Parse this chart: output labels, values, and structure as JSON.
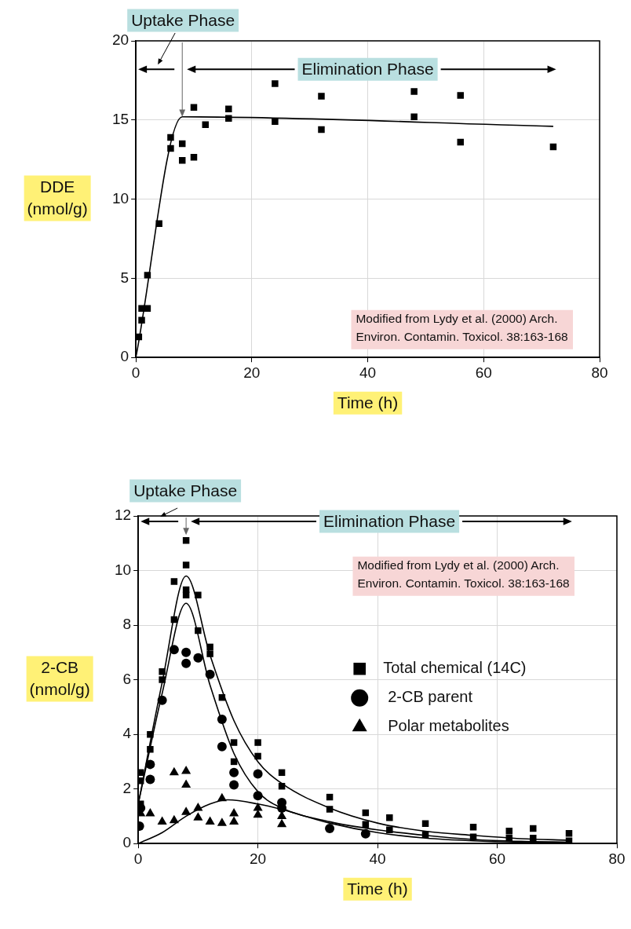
{
  "chart_data": [
    {
      "type": "scatter",
      "xlabel": "Time (h)",
      "ylabel": "DDE (nmol/g)",
      "xlim": [
        0,
        80
      ],
      "xticks": [
        0,
        20,
        40,
        60,
        80
      ],
      "ylim": [
        0,
        20
      ],
      "yticks": [
        0,
        5,
        10,
        15,
        20
      ],
      "grid": true,
      "marker": "square",
      "annotations": [
        {
          "text": "Uptake Phase",
          "x": 8,
          "y": 15.2
        },
        "Elimination Phase",
        "Modified from Lydy et al. (2000) Arch. Environ. Contamin. Toxicol. 38:163-168"
      ],
      "series": [
        {
          "color": "#000000",
          "x": [
            0.5,
            1,
            1,
            2,
            2,
            4,
            6,
            6,
            8,
            8,
            10,
            10,
            12,
            16,
            16,
            24,
            24,
            32,
            32,
            48,
            48,
            56,
            56,
            72
          ],
          "values": [
            1.3,
            2.35,
            3.1,
            3.1,
            5.2,
            8.45,
            13.9,
            13.2,
            13.5,
            12.45,
            15.8,
            12.65,
            14.7,
            15.7,
            15.1,
            17.3,
            14.9,
            16.5,
            14.4,
            16.8,
            15.2,
            16.55,
            13.6,
            13.3
          ]
        },
        {
          "type": "line",
          "color": "#000000",
          "marker": "none",
          "x": [
            0,
            8,
            72
          ],
          "values": [
            0,
            15.2,
            14.6
          ]
        }
      ]
    },
    {
      "type": "scatter",
      "xlabel": "Time (h)",
      "ylabel": "2-CB (nmol/g)",
      "xlim": [
        0,
        80
      ],
      "xticks": [
        0,
        20,
        40,
        60,
        80
      ],
      "ylim": [
        0,
        12
      ],
      "yticks": [
        0,
        2,
        4,
        6,
        8,
        10,
        12
      ],
      "grid": true,
      "legend": "right",
      "annotations": [
        {
          "text": "Uptake Phase",
          "x": 8,
          "y": 11.3
        },
        "Elimination Phase",
        "Modified from Lydy et al. (2000) Arch. Environ. Contamin. Toxicol. 38:163-168"
      ],
      "series": [
        {
          "name": "Total chemical (14C)",
          "color": "#000000",
          "marker": "square",
          "x": [
            0.4,
            0.4,
            0.4,
            2,
            2,
            4,
            4,
            6,
            6,
            8,
            8,
            8,
            8,
            10,
            10,
            12,
            12,
            14,
            16,
            16,
            20,
            20,
            24,
            24,
            32,
            32,
            38,
            38,
            42,
            42,
            48,
            48,
            56,
            56,
            62,
            62,
            66,
            66,
            72,
            72
          ],
          "values": [
            1.45,
            2.6,
            2.3,
            4.0,
            3.45,
            6.3,
            6.0,
            9.6,
            8.2,
            11.1,
            10.2,
            9.3,
            9.1,
            9.1,
            7.8,
            7.2,
            6.95,
            5.35,
            3.7,
            3.0,
            3.7,
            3.2,
            2.6,
            2.1,
            1.7,
            1.26,
            1.13,
            0.7,
            0.95,
            0.5,
            0.73,
            0.33,
            0.6,
            0.24,
            0.46,
            0.2,
            0.55,
            0.2,
            0.37,
            0.1
          ]
        },
        {
          "name": "2-CB parent",
          "color": "#000000",
          "marker": "circle",
          "x": [
            0.2,
            0.4,
            2,
            2,
            4,
            6,
            8,
            8,
            10,
            12,
            14,
            14,
            16,
            16,
            20,
            20,
            24,
            24,
            32,
            38
          ],
          "values": [
            0.64,
            1.3,
            2.9,
            2.35,
            5.25,
            7.1,
            7.0,
            6.6,
            6.8,
            6.2,
            4.55,
            3.55,
            2.6,
            2.15,
            2.55,
            1.75,
            1.5,
            1.3,
            0.55,
            0.36
          ]
        },
        {
          "name": "Polar metabolites",
          "color": "#000000",
          "marker": "triangle",
          "x": [
            0.4,
            2,
            4,
            6,
            6,
            8,
            8,
            8,
            10,
            10,
            12,
            14,
            14,
            16,
            16,
            20,
            20,
            24,
            24
          ],
          "values": [
            1.1,
            1.1,
            0.8,
            0.85,
            2.6,
            2.65,
            2.15,
            1.15,
            1.3,
            0.95,
            0.8,
            1.65,
            0.75,
            1.1,
            0.8,
            1.3,
            1.05,
            1.0,
            0.7
          ]
        },
        {
          "type": "line",
          "color": "#000000",
          "marker": "none",
          "x": [
            0,
            4,
            8,
            12,
            16,
            20,
            24,
            32,
            40,
            48,
            56,
            64,
            72
          ],
          "values": [
            1.45,
            5.9,
            9.8,
            6.9,
            4.5,
            3.0,
            2.2,
            1.3,
            0.75,
            0.45,
            0.3,
            0.18,
            0.12
          ]
        },
        {
          "type": "line",
          "color": "#000000",
          "marker": "none",
          "x": [
            0,
            4,
            8,
            12,
            16,
            20,
            24,
            32,
            40,
            48,
            56,
            64,
            72
          ],
          "values": [
            1.45,
            5.5,
            8.8,
            5.8,
            3.3,
            1.9,
            1.3,
            0.8,
            0.5,
            0.3,
            0.15,
            0.08,
            0.05
          ]
        },
        {
          "type": "line",
          "color": "#000000",
          "marker": "none",
          "x": [
            0,
            4,
            8,
            12,
            15,
            20,
            24,
            32,
            40,
            48,
            56,
            64,
            72
          ],
          "values": [
            0,
            0.4,
            1.0,
            1.45,
            1.6,
            1.45,
            1.25,
            0.75,
            0.4,
            0.2,
            0.1,
            0.05,
            0.03
          ]
        }
      ]
    }
  ]
}
